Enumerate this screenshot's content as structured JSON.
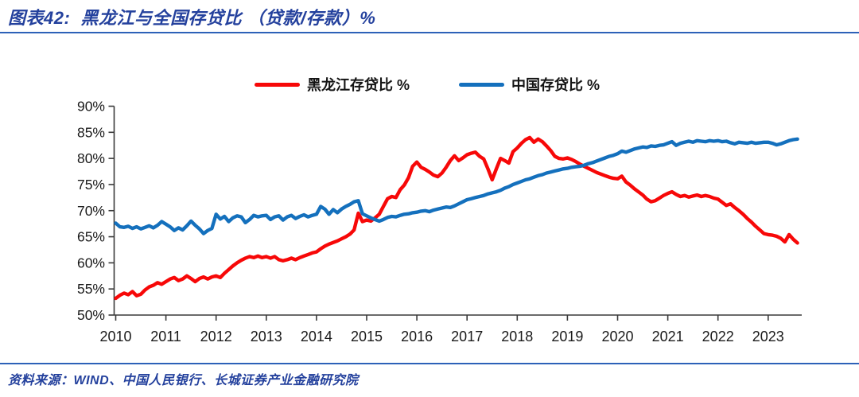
{
  "header": {
    "title": "图表42:  黑龙江与全国存贷比 （贷款/存款）%"
  },
  "footer": {
    "source": "资料来源：WIND、中国人民银行、长城证券产业金融研究院"
  },
  "colors": {
    "heilongjiang_red": "#f70808",
    "china_blue": "#1470bd",
    "title_blue": "#24419d",
    "rule_blue": "#2d61b8",
    "axis_line": "#3a3a3a",
    "axis_text": "#1a1a1a"
  },
  "chart_data": {
    "type": "line",
    "title": "黑龙江与全国存贷比（贷款/存款）%",
    "xlabel": "",
    "ylabel": "",
    "ylim": [
      50,
      90
    ],
    "y_step": 5,
    "grid": false,
    "legend_position": "top-center",
    "x_start_year": 2010,
    "points_per_year": 12,
    "x_tick_labels": [
      "2010",
      "2011",
      "2012",
      "2013",
      "2014",
      "2015",
      "2016",
      "2017",
      "2018",
      "2019",
      "2020",
      "2021",
      "2022",
      "2023"
    ],
    "y_tick_labels": [
      "50%",
      "55%",
      "60%",
      "65%",
      "70%",
      "75%",
      "80%",
      "85%",
      "90%"
    ],
    "series": [
      {
        "name": "黑龙江存贷比 %",
        "color": "#f70808",
        "values": [
          53.2,
          53.8,
          54.2,
          53.9,
          54.5,
          53.7,
          54.0,
          54.8,
          55.4,
          55.7,
          56.2,
          55.9,
          56.4,
          56.9,
          57.2,
          56.6,
          56.9,
          57.5,
          57.0,
          56.4,
          57.0,
          57.3,
          56.9,
          57.3,
          57.5,
          57.2,
          58.0,
          58.7,
          59.4,
          60.0,
          60.5,
          60.9,
          61.2,
          61.0,
          61.3,
          61.0,
          61.2,
          60.9,
          61.2,
          60.6,
          60.4,
          60.6,
          60.9,
          60.6,
          61.0,
          61.3,
          61.6,
          61.9,
          62.1,
          62.7,
          63.2,
          63.6,
          63.9,
          64.2,
          64.6,
          65.0,
          65.5,
          66.3,
          69.5,
          67.9,
          68.2,
          68.0,
          68.6,
          69.3,
          70.8,
          72.3,
          72.7,
          72.5,
          74.0,
          74.9,
          76.3,
          78.5,
          79.3,
          78.3,
          77.9,
          77.4,
          76.8,
          76.5,
          77.2,
          78.3,
          79.6,
          80.5,
          79.6,
          80.1,
          80.7,
          81.0,
          81.2,
          80.4,
          79.9,
          78.0,
          75.9,
          78.0,
          80.0,
          79.6,
          79.1,
          81.3,
          82.0,
          82.9,
          83.6,
          84.0,
          83.1,
          83.7,
          83.2,
          82.4,
          81.5,
          80.4,
          80.0,
          79.9,
          80.1,
          79.8,
          79.4,
          78.9,
          78.5,
          78.1,
          77.7,
          77.3,
          77.0,
          76.7,
          76.4,
          76.2,
          76.1,
          76.6,
          75.5,
          74.9,
          74.2,
          73.6,
          73.0,
          72.2,
          71.7,
          71.9,
          72.4,
          72.9,
          73.3,
          73.6,
          73.1,
          72.7,
          72.9,
          72.6,
          72.8,
          73.0,
          72.7,
          72.9,
          72.7,
          72.4,
          72.2,
          71.6,
          71.0,
          71.3,
          70.6,
          70.0,
          69.3,
          68.5,
          67.8,
          67.0,
          66.3,
          65.6,
          65.4,
          65.3,
          65.1,
          64.7,
          64.0,
          65.4,
          64.5,
          63.8
        ]
      },
      {
        "name": "中国存贷比 %",
        "color": "#1470bd",
        "values": [
          67.6,
          66.9,
          66.8,
          67.0,
          66.6,
          66.9,
          66.5,
          66.8,
          67.1,
          66.7,
          67.2,
          67.9,
          67.4,
          66.9,
          66.2,
          66.7,
          66.3,
          67.1,
          68.0,
          67.2,
          66.5,
          65.6,
          66.2,
          66.6,
          69.3,
          68.4,
          68.9,
          67.9,
          68.6,
          69.0,
          68.8,
          67.7,
          68.3,
          69.1,
          68.8,
          69.0,
          69.1,
          68.3,
          68.8,
          69.0,
          68.2,
          68.8,
          69.1,
          68.5,
          68.9,
          69.2,
          68.8,
          69.1,
          69.3,
          70.8,
          70.3,
          69.3,
          70.2,
          69.6,
          70.3,
          70.8,
          71.2,
          71.7,
          71.9,
          69.4,
          69.0,
          68.6,
          68.3,
          68.0,
          68.3,
          68.7,
          68.9,
          68.8,
          69.1,
          69.3,
          69.4,
          69.6,
          69.7,
          69.9,
          70.0,
          69.8,
          70.1,
          70.3,
          70.5,
          70.7,
          70.6,
          70.9,
          71.3,
          71.7,
          72.1,
          72.3,
          72.5,
          72.7,
          72.9,
          73.2,
          73.4,
          73.6,
          73.9,
          74.3,
          74.6,
          75.0,
          75.3,
          75.6,
          75.9,
          76.1,
          76.4,
          76.7,
          76.9,
          77.2,
          77.4,
          77.6,
          77.8,
          78.0,
          78.1,
          78.3,
          78.4,
          78.5,
          78.7,
          79.0,
          79.2,
          79.5,
          79.8,
          80.1,
          80.4,
          80.6,
          80.9,
          81.4,
          81.2,
          81.5,
          81.8,
          82.0,
          82.2,
          82.1,
          82.4,
          82.3,
          82.5,
          82.6,
          82.9,
          83.2,
          82.5,
          82.9,
          83.1,
          83.3,
          83.1,
          83.4,
          83.3,
          83.2,
          83.4,
          83.3,
          83.4,
          83.2,
          83.3,
          83.0,
          82.8,
          83.1,
          83.0,
          82.9,
          83.1,
          82.9,
          83.0,
          83.1,
          83.1,
          82.9,
          82.6,
          82.8,
          83.1,
          83.4,
          83.6,
          83.7
        ]
      }
    ]
  }
}
